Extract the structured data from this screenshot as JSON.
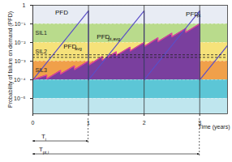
{
  "chart_data": {
    "type": "line",
    "x_label": "Time (years)",
    "y_label": "Probability of failure on demand (PFD)",
    "log": "y",
    "grid": true,
    "xlim": [
      0,
      3.5
    ],
    "xticks": [
      0,
      1,
      2,
      3
    ],
    "ylim": [
      1.5e-06,
      1
    ],
    "yticks": [
      {
        "value": 1e-05,
        "label": "10⁻⁵"
      },
      {
        "value": 0.0001,
        "label": "10⁻⁴"
      },
      {
        "value": 0.001,
        "label": "10⁻³"
      },
      {
        "value": 0.01,
        "label": "10⁻²"
      },
      {
        "value": 0.1,
        "label": "10⁻¹"
      },
      1
    ],
    "bands": [
      {
        "from": 1.5e-06,
        "to": 1e-05,
        "color": "#bfe6ee"
      },
      {
        "from": 1e-05,
        "to": 0.0001,
        "color": "#5cc6d6"
      },
      {
        "from": 0.0001,
        "to": 0.001,
        "color": "#f0a04a",
        "label": "SIL3"
      },
      {
        "from": 0.001,
        "to": 0.01,
        "color": "#f6e27a",
        "label": "SIL2"
      },
      {
        "from": 0.01,
        "to": 0.1,
        "color": "#b9db8c",
        "label": "SIL1"
      },
      {
        "from": 0.1,
        "to": 1,
        "color": "#e8ecf4"
      }
    ],
    "series": [
      {
        "type": "area",
        "color": "#7a3f9e",
        "baseline": 0.0001,
        "x": [
          0,
          0.25,
          0.25,
          0.5,
          0.5,
          0.75,
          0.75,
          1,
          1,
          1.25,
          1.25,
          1.5,
          1.5,
          1.75,
          1.75,
          2,
          2,
          2.25,
          2.25,
          2.5,
          2.5,
          2.75,
          2.75,
          3,
          3
        ],
        "values": [
          0.0001,
          0.00018,
          0.00011,
          0.00032,
          0.0002,
          0.00056,
          0.00035,
          0.001,
          0.0006,
          0.0018,
          0.0011,
          0.0032,
          0.002,
          0.0056,
          0.0035,
          0.01,
          0.006,
          0.018,
          0.011,
          0.032,
          0.02,
          0.056,
          0.035,
          0.1,
          0.0001
        ]
      },
      {
        "type": "line",
        "color": "#e0409a",
        "x": [
          0,
          0.25,
          0.25,
          0.5,
          0.5,
          0.75,
          0.75,
          1,
          1,
          1.25,
          1.25,
          1.5,
          1.5,
          1.75,
          1.75,
          2,
          2,
          2.25,
          2.25,
          2.5,
          2.5,
          2.75,
          2.75,
          3,
          3
        ],
        "values": [
          0.0001,
          0.00018,
          0.00011,
          0.00032,
          0.0002,
          0.00056,
          0.00035,
          0.001,
          0.0006,
          0.0018,
          0.0011,
          0.0032,
          0.002,
          0.0056,
          0.0035,
          0.01,
          0.006,
          0.018,
          0.011,
          0.032,
          0.02,
          0.056,
          0.035,
          0.1,
          0.0001
        ]
      },
      {
        "type": "line",
        "color": "#5b4fc8",
        "x": [
          0,
          1,
          1,
          2,
          2,
          3,
          3,
          3.5
        ],
        "values": [
          0.0001,
          0.5,
          0.0001,
          0.5,
          0.0001,
          0.5,
          0.0001,
          0.007
        ]
      }
    ],
    "reference_lines": [
      {
        "value": 0.0022,
        "color": "#222222",
        "line_style": "dashed"
      },
      {
        "value": 0.0016,
        "color": "#222222",
        "line_style": "dashed"
      }
    ],
    "annotations": [
      {
        "text": "PFD",
        "x": 0.4,
        "y": 0.4
      },
      {
        "text": "PFD",
        "sub": "pt",
        "x": 2.75,
        "y": 0.35
      },
      {
        "text": "PFD",
        "sub": "avg",
        "x": 0.55,
        "y": 0.006
      },
      {
        "text": "PFD",
        "sub": "pt,avg",
        "x": 1.15,
        "y": 0.02
      }
    ],
    "intervals": [
      {
        "text": "T",
        "sub": "i",
        "from": 0,
        "to": 1
      },
      {
        "text": "T",
        "sub": "pt,i",
        "from": 0,
        "to": 3
      }
    ]
  }
}
